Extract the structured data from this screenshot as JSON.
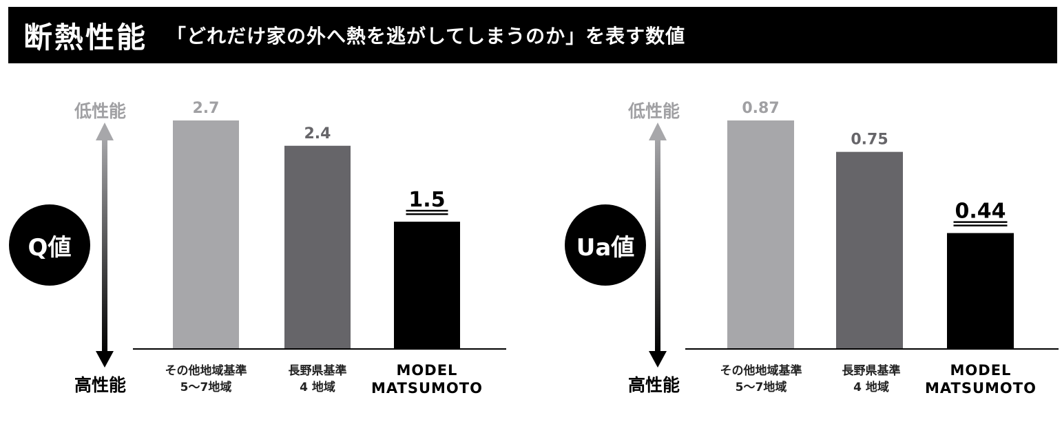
{
  "header": {
    "title": "断熱性能",
    "subtitle": "「どれだけ家の外へ熱を逃がしてしまうのか」を表す数値"
  },
  "colors": {
    "light_bar": "#a7a7aa",
    "mid_bar": "#666569",
    "dark_bar": "#000000",
    "low_label": "#a0a0a3"
  },
  "chart_data": [
    {
      "type": "bar",
      "badge": "Q値",
      "low_label": "低性能",
      "high_label": "高性能",
      "categories": [
        "その他地域基準\n5～7地域",
        "長野県基準\n4 地域",
        "MODEL\nMATSUMOTO"
      ],
      "values": [
        2.7,
        2.4,
        1.5
      ],
      "value_labels": [
        "2.7",
        "2.4",
        "1.5"
      ],
      "ylim": [
        0,
        2.7
      ]
    },
    {
      "type": "bar",
      "badge": "Ua値",
      "low_label": "低性能",
      "high_label": "高性能",
      "categories": [
        "その他地域基準\n5～7地域",
        "長野県基準\n4 地域",
        "MODEL\nMATSUMOTO"
      ],
      "values": [
        0.87,
        0.75,
        0.44
      ],
      "value_labels": [
        "0.87",
        "0.75",
        "0.44"
      ],
      "ylim": [
        0,
        0.87
      ]
    }
  ]
}
